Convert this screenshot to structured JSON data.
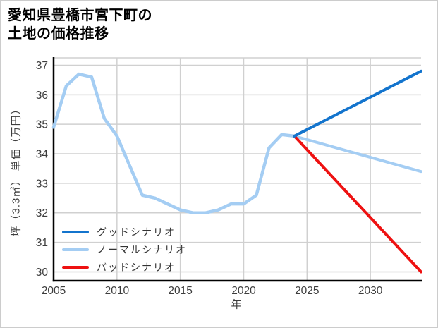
{
  "chart_data": {
    "type": "line",
    "title": "愛知県豊橋市宮下町の土地の価格推移",
    "title_lines": [
      "愛知県豊橋市宮下町の",
      "土地の価格推移"
    ],
    "xlabel": "年",
    "ylabel": "坪（3.3㎡） 単価（万円）",
    "xlim": [
      2005,
      2034
    ],
    "ylim": [
      29.7,
      37.25
    ],
    "xticks": [
      2005,
      2010,
      2015,
      2020,
      2025,
      2030
    ],
    "yticks": [
      30,
      31,
      32,
      33,
      34,
      35,
      36,
      37
    ],
    "grid": true,
    "legend_position": "inside-bottom-left",
    "colors": {
      "good": "#1374cd",
      "normal": "#a4cdf3",
      "bad": "#ee1111",
      "history": "#a4cdf3",
      "grid": "#d0d0d0",
      "axis": "#000000"
    },
    "series": [
      {
        "key": "history",
        "color": "#a4cdf3",
        "x": [
          2005,
          2006,
          2007,
          2008,
          2009,
          2010,
          2011,
          2012,
          2013,
          2014,
          2015,
          2016,
          2017,
          2018,
          2019,
          2020,
          2021,
          2022,
          2023,
          2024
        ],
        "y": [
          34.9,
          36.3,
          36.7,
          36.6,
          35.2,
          34.6,
          33.6,
          32.6,
          32.5,
          32.3,
          32.1,
          32.0,
          32.0,
          32.1,
          32.3,
          32.3,
          32.6,
          34.2,
          34.65,
          34.6
        ]
      },
      {
        "key": "good",
        "name": "グッドシナリオ",
        "color": "#1374cd",
        "x": [
          2024,
          2034
        ],
        "y": [
          34.6,
          36.8
        ]
      },
      {
        "key": "normal",
        "name": "ノーマルシナリオ",
        "color": "#a4cdf3",
        "x": [
          2024,
          2034
        ],
        "y": [
          34.6,
          33.4
        ]
      },
      {
        "key": "bad",
        "name": "バッドシナリオ",
        "color": "#ee1111",
        "x": [
          2024,
          2034
        ],
        "y": [
          34.6,
          30.0
        ]
      }
    ],
    "legend": {
      "items": [
        {
          "label": "グッドシナリオ",
          "color": "#1374cd"
        },
        {
          "label": "ノーマルシナリオ",
          "color": "#a4cdf3"
        },
        {
          "label": "バッドシナリオ",
          "color": "#ee1111"
        }
      ]
    }
  }
}
